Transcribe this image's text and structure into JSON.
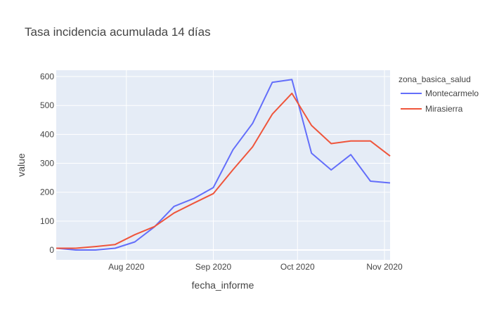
{
  "chart_data": {
    "type": "line",
    "title": "Tasa incidencia acumulada 14 días",
    "xlabel": "fecha_informe",
    "ylabel": "value",
    "x": [
      "2020-07-07",
      "2020-07-14",
      "2020-07-21",
      "2020-07-28",
      "2020-08-04",
      "2020-08-11",
      "2020-08-18",
      "2020-08-25",
      "2020-09-01",
      "2020-09-08",
      "2020-09-15",
      "2020-09-22",
      "2020-09-29",
      "2020-10-06",
      "2020-10-13",
      "2020-10-20",
      "2020-10-27",
      "2020-11-03"
    ],
    "series": [
      {
        "name": "Montecarmelo",
        "color": "#636efa",
        "values": [
          6,
          0,
          0,
          6,
          28,
          80,
          151,
          178,
          216,
          347,
          438,
          580,
          590,
          335,
          277,
          330,
          238,
          232
        ]
      },
      {
        "name": "Mirasierra",
        "color": "#ef553b",
        "values": [
          6,
          6,
          12,
          19,
          53,
          81,
          128,
          162,
          195,
          278,
          357,
          470,
          542,
          431,
          368,
          377,
          377,
          325
        ]
      }
    ],
    "xlim": [
      "2020-07-07",
      "2020-11-03"
    ],
    "ylim": [
      -34,
      622
    ],
    "xticks": [
      {
        "date": "2020-08-01",
        "label": "Aug 2020"
      },
      {
        "date": "2020-09-01",
        "label": "Sep 2020"
      },
      {
        "date": "2020-10-01",
        "label": "Oct 2020"
      },
      {
        "date": "2020-11-01",
        "label": "Nov 2020"
      }
    ],
    "yticks": [
      0,
      100,
      200,
      300,
      400,
      500,
      600
    ],
    "grid": true,
    "legend": {
      "title": "zona_basica_salud",
      "position": "right"
    },
    "plot_bg": "#e5ecf6"
  }
}
